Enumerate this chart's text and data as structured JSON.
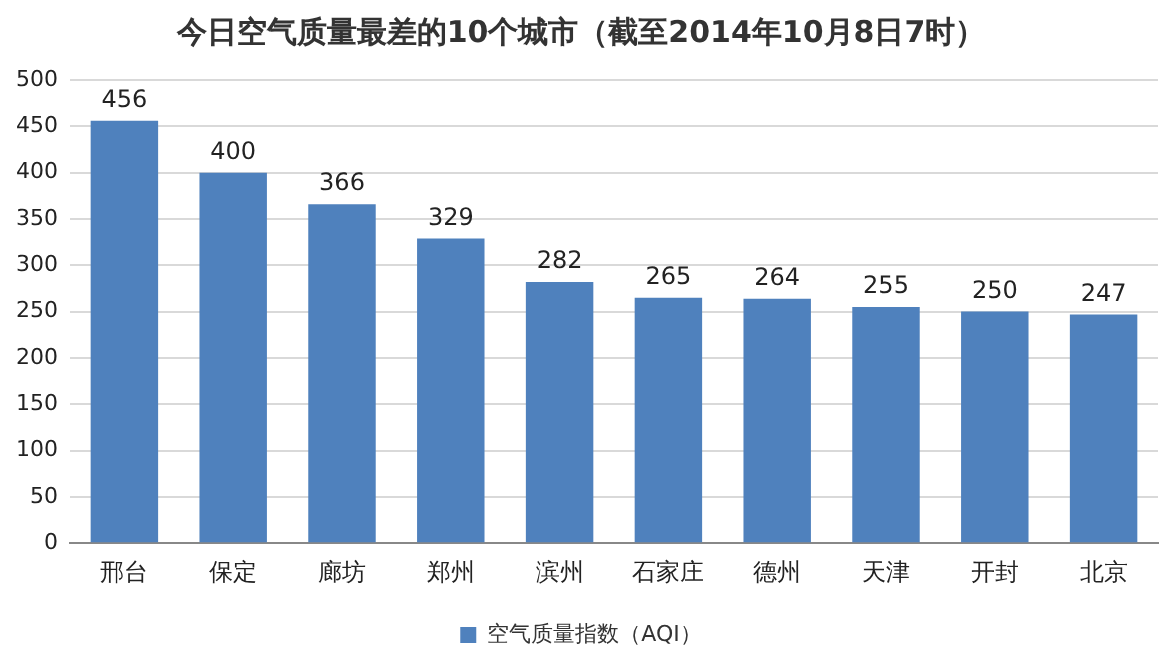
{
  "chart_data": {
    "type": "bar",
    "title": "今日空气质量最差的10个城市（截至2014年10月8日7时）",
    "categories": [
      "邢台",
      "保定",
      "廊坊",
      "郑州",
      "滨州",
      "石家庄",
      "德州",
      "天津",
      "开封",
      "北京"
    ],
    "series": [
      {
        "name": "空气质量指数（AQI）",
        "color": "#4f81bd",
        "values": [
          456,
          400,
          366,
          329,
          282,
          265,
          264,
          255,
          250,
          247
        ]
      }
    ],
    "ylim": [
      0,
      500
    ],
    "yticks": [
      0,
      50,
      100,
      150,
      200,
      250,
      300,
      350,
      400,
      450,
      500
    ],
    "grid": "y",
    "legend": "bottom",
    "data_labels": true
  }
}
